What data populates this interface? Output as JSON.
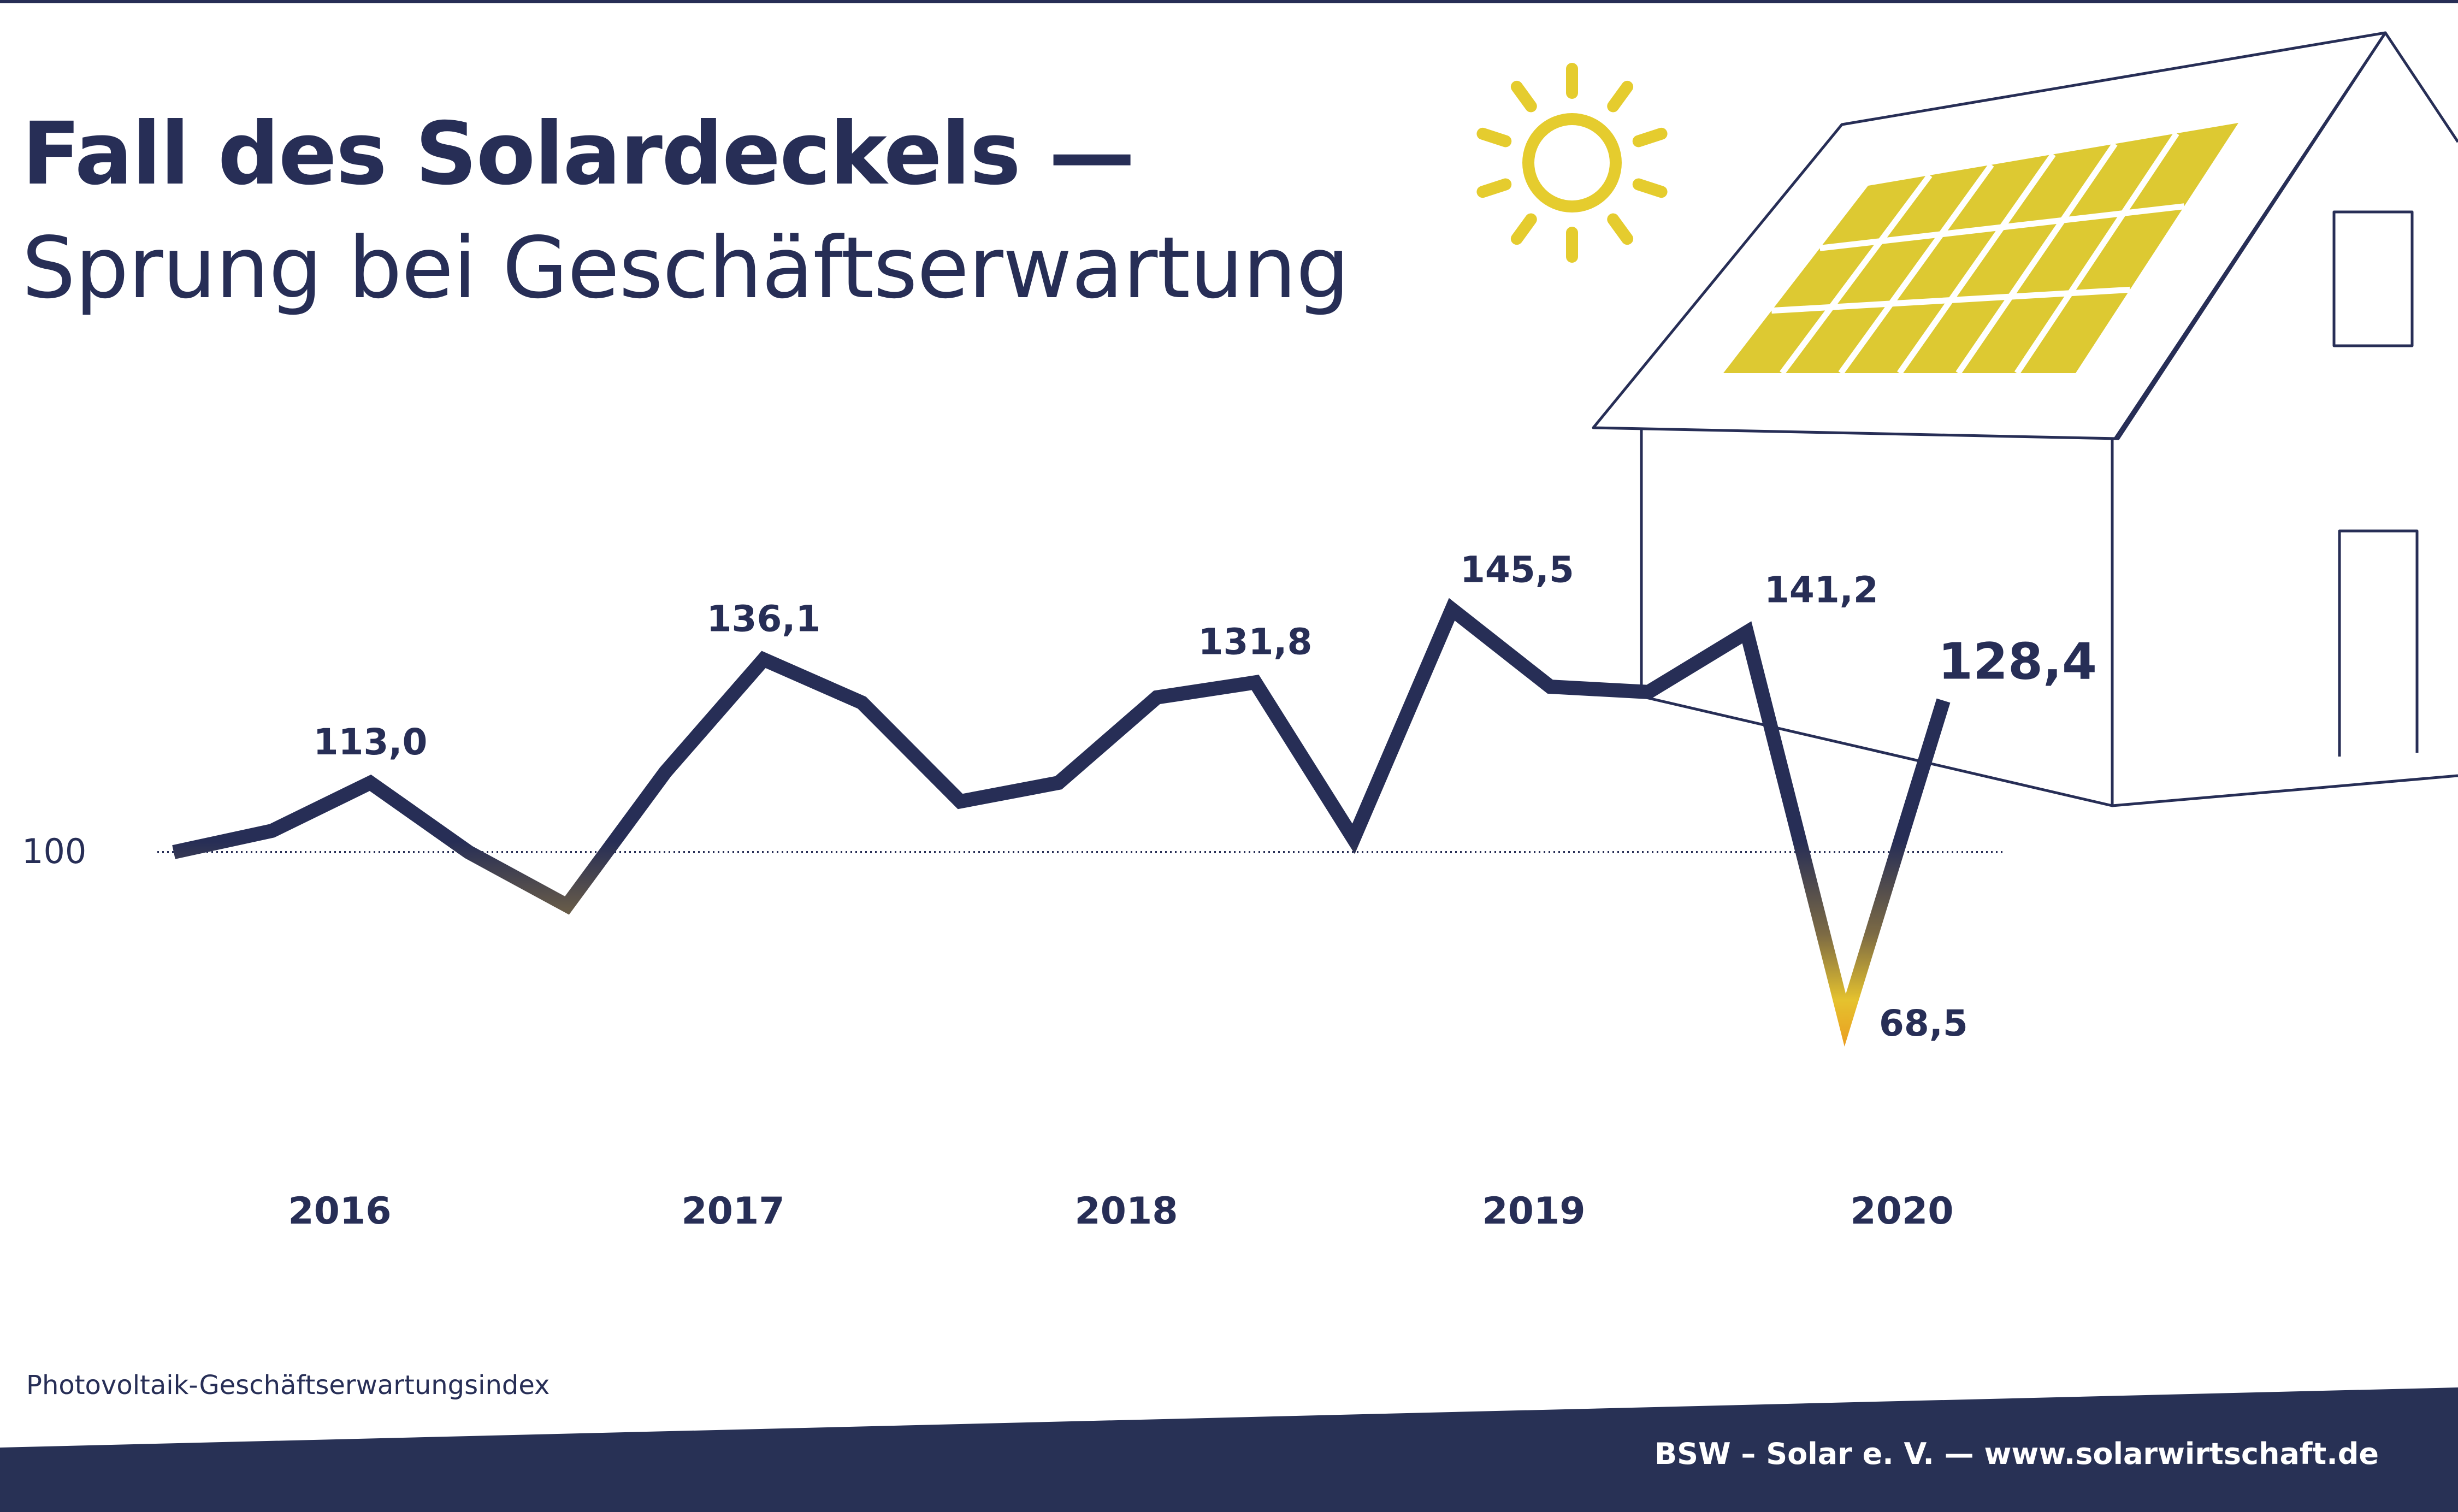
{
  "header": {
    "title": "Fall des Solardeckels —",
    "subtitle": "Sprung bei Geschäftserwartung"
  },
  "source_label": "Photovoltaik-Geschäftserwartungsindex",
  "footer": {
    "credit": "BSW – Solar e. V. — www.solarwirtschaft.de"
  },
  "colors": {
    "line": "#272e56",
    "sun": "#e5cc2e",
    "panel": "#ddc932",
    "footer_band": "#283155",
    "dip_orange": "#ee8a1a",
    "dip_red": "#d93a14"
  },
  "illustration": {
    "icons": [
      "sun-icon",
      "house-icon",
      "solar-panel-icon"
    ]
  },
  "chart_data": {
    "type": "line",
    "baseline": {
      "value": 100,
      "label": "100",
      "style": "dotted"
    },
    "x_labels": [
      "2016",
      "2017",
      "2018",
      "2019",
      "2020"
    ],
    "series": [
      {
        "values": [
          100.0,
          104.0,
          113.0,
          100.0,
          90.0,
          115.0,
          136.1,
          128.0,
          109.5,
          113.0,
          129.0,
          131.8,
          102.5,
          145.5,
          131.0,
          130.0,
          141.2,
          68.5,
          128.4
        ]
      }
    ],
    "data_labels": [
      {
        "index": 2,
        "text": "113,0"
      },
      {
        "index": 6,
        "text": "136,1"
      },
      {
        "index": 11,
        "text": "131,8"
      },
      {
        "index": 13,
        "text": "145,5"
      },
      {
        "index": 16,
        "text": "141,2"
      },
      {
        "index": 17,
        "text": "68,5"
      },
      {
        "index": 18,
        "text": "128,4",
        "emphasis": true
      }
    ],
    "ylim": [
      60,
      150
    ],
    "grid": false,
    "legend": "none"
  }
}
